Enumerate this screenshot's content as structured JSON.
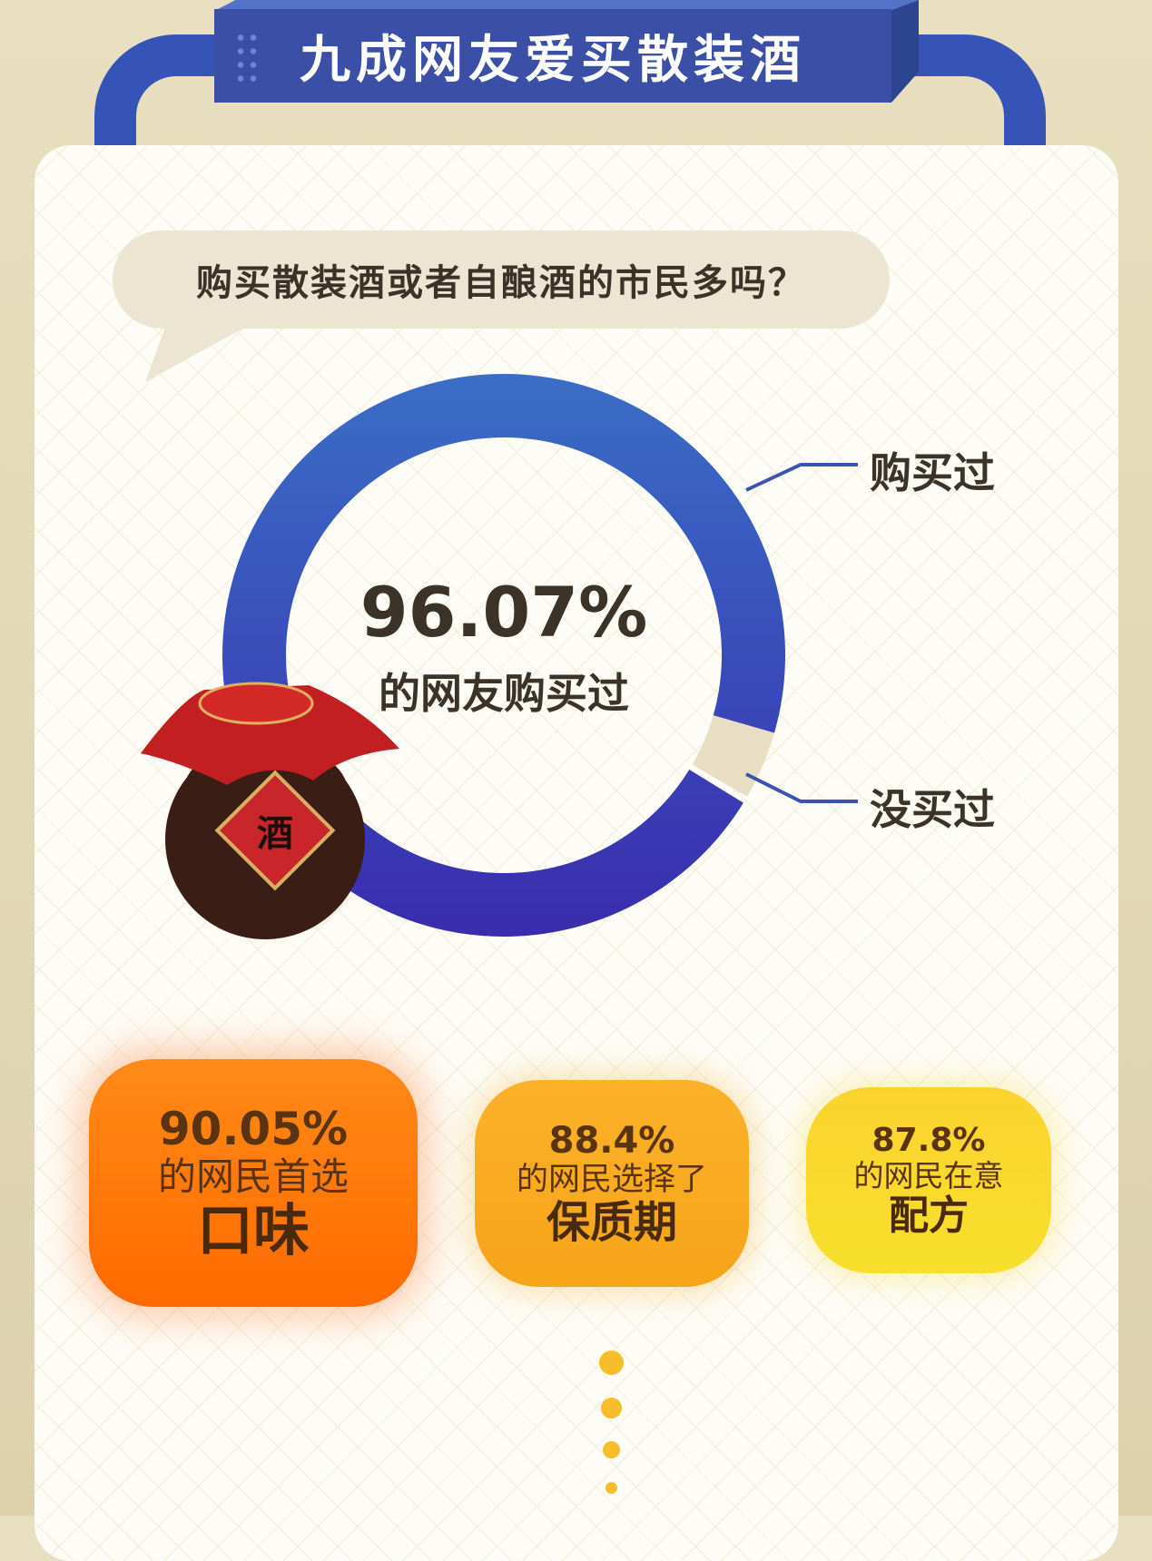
{
  "header": {
    "title": "九成网友爱买散装酒"
  },
  "question": "购买散装酒或者自酿酒的市民多吗？",
  "chart_data": {
    "type": "pie",
    "variant": "donut",
    "categories": [
      "购买过",
      "没买过"
    ],
    "values": [
      96.07,
      3.93
    ],
    "center_value": "96.07%",
    "center_label": "的网友购买过",
    "colors": {
      "bought": "#3a5cc0",
      "not_bought": "#e8dec3"
    }
  },
  "jar": {
    "label": "酒"
  },
  "stats": [
    {
      "pct": "90.05%",
      "text": "的网民首选",
      "item": "口味"
    },
    {
      "pct": "88.4%",
      "text": "的网民选择了",
      "item": "保质期"
    },
    {
      "pct": "87.8%",
      "text": "的网民在意",
      "item": "配方"
    }
  ]
}
